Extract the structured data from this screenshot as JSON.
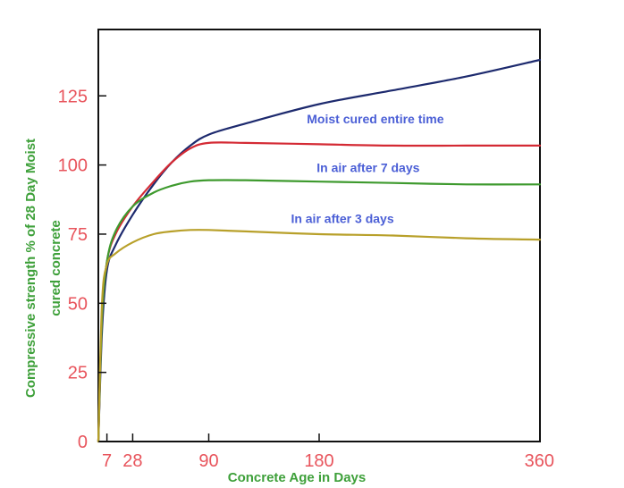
{
  "chart_data": {
    "type": "line",
    "title": "",
    "xlabel": "Concrete Age in Days",
    "ylabel": [
      "Compressive strength  % of 28 Day Moist",
      "cured concrete"
    ],
    "x_ticks": [
      7,
      28,
      90,
      180,
      360
    ],
    "y_ticks": [
      0,
      25,
      50,
      75,
      100,
      125
    ],
    "xlim": [
      0,
      360
    ],
    "ylim": [
      0,
      149
    ],
    "grid": false,
    "series": [
      {
        "name": "Moist cured entire time",
        "color": "#1d2a6e",
        "x": [
          0,
          3,
          7,
          14,
          28,
          45,
          60,
          75,
          90,
          120,
          180,
          240,
          300,
          360
        ],
        "y": [
          0,
          40,
          62,
          71,
          82,
          93,
          101,
          107,
          111,
          115,
          122,
          127,
          132,
          138
        ]
      },
      {
        "name": "",
        "color": "#d42a34",
        "x": [
          0,
          3,
          7,
          14,
          28,
          45,
          60,
          75,
          90,
          120,
          180,
          240,
          300,
          360
        ],
        "y": [
          0,
          45,
          65,
          75,
          85,
          94,
          101,
          106,
          108,
          108,
          107.5,
          107,
          107,
          107
        ]
      },
      {
        "name": "In air after 7 days",
        "color": "#3e9a2e",
        "x": [
          0,
          3,
          7,
          14,
          28,
          45,
          60,
          75,
          90,
          120,
          180,
          240,
          300,
          360
        ],
        "y": [
          0,
          45,
          65,
          76,
          85,
          90,
          92.5,
          94,
          94.5,
          94.5,
          94,
          93.5,
          93,
          93
        ]
      },
      {
        "name": "In air after 3  days",
        "color": "#b8a02a",
        "x": [
          0,
          3,
          7,
          14,
          28,
          45,
          60,
          75,
          90,
          120,
          180,
          240,
          300,
          360
        ],
        "y": [
          0,
          50,
          64,
          68,
          72,
          75,
          76,
          76.5,
          76.5,
          76,
          75,
          74.5,
          73.5,
          73
        ]
      }
    ],
    "annotations": [
      {
        "text": "Moist cured entire time",
        "x": 170,
        "y": 115,
        "color": "#4b5fd6"
      },
      {
        "text": "In air after 7 days",
        "x": 178,
        "y": 97.5,
        "color": "#4b5fd6"
      },
      {
        "text": "In air after 3  days",
        "x": 157,
        "y": 79,
        "color": "#4b5fd6"
      }
    ],
    "colors": {
      "tick": "#e8545c",
      "axis_title": "#3ea03a",
      "annotation": "#4b5fd6",
      "frame": "#111111"
    }
  }
}
